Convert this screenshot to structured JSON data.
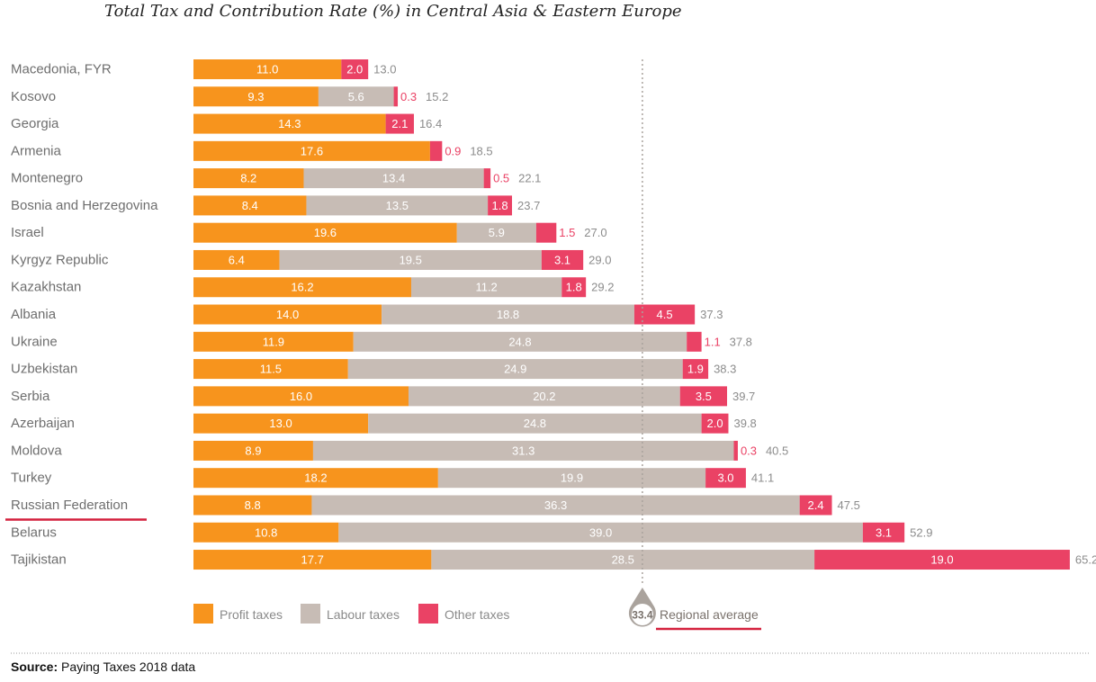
{
  "title": "Total Tax and Contribution Rate (%) in Central Asia & Eastern Europe",
  "source_label": "Source:",
  "source_text": "Paying Taxes 2018 data",
  "colors": {
    "profit": "#f7941d",
    "labour": "#c7bcb5",
    "other": "#ea4265",
    "label_gray": "#8c8c8c",
    "highlight_underline": "#d4213d",
    "average_line": "#aaa39d"
  },
  "chart_data": {
    "type": "bar",
    "stacked": true,
    "orientation": "horizontal",
    "title": "Total Tax and Contribution Rate (%) in Central Asia & Eastern Europe",
    "categories": [
      "Macedonia, FYR",
      "Kosovo",
      "Georgia",
      "Armenia",
      "Montenegro",
      "Bosnia and Herzegovina",
      "Israel",
      "Kyrgyz Republic",
      "Kazakhstan",
      "Albania",
      "Ukraine",
      "Uzbekistan",
      "Serbia",
      "Azerbaijan",
      "Moldova",
      "Turkey",
      "Russian Federation",
      "Belarus",
      "Tajikistan"
    ],
    "series": [
      {
        "name": "Profit taxes",
        "values": [
          11.0,
          9.3,
          14.3,
          17.6,
          8.2,
          8.4,
          19.6,
          6.4,
          16.2,
          14.0,
          11.9,
          11.5,
          16.0,
          13.0,
          8.9,
          18.2,
          8.8,
          10.8,
          17.7
        ]
      },
      {
        "name": "Labour taxes",
        "values": [
          0,
          5.6,
          0,
          0,
          13.4,
          13.5,
          5.9,
          19.5,
          11.2,
          18.8,
          24.8,
          24.9,
          20.2,
          24.8,
          31.3,
          19.9,
          36.3,
          39.0,
          28.5
        ]
      },
      {
        "name": "Other taxes",
        "values": [
          2.0,
          0.3,
          2.1,
          0.9,
          0.5,
          1.8,
          1.5,
          3.1,
          1.8,
          4.5,
          1.1,
          1.9,
          3.5,
          2.0,
          0.3,
          3.0,
          2.4,
          3.1,
          19.0
        ]
      }
    ],
    "totals": [
      "13.0",
      "15.2",
      "16.4",
      "18.5",
      "22.1",
      "23.7",
      "27.0",
      "29.0",
      "29.2",
      "37.3",
      "37.8",
      "38.3",
      "39.7",
      "39.8",
      "40.5",
      "41.1",
      "47.5",
      "52.9",
      "65.2"
    ],
    "regional_average": {
      "value": 33.4,
      "label": "Regional average"
    },
    "highlighted_category": "Russian Federation",
    "legend": {
      "placement": "bottom",
      "items": [
        "Profit taxes",
        "Labour taxes",
        "Other taxes"
      ]
    },
    "xlim": [
      0,
      65.2
    ],
    "grid": false
  }
}
